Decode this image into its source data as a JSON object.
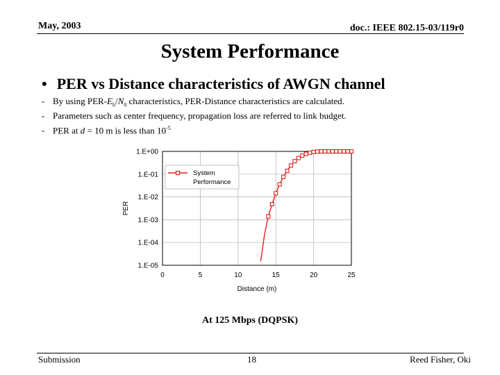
{
  "header": {
    "date": "May, 2003",
    "doc": "doc.: IEEE 802.15-03/119r0"
  },
  "title": "System Performance",
  "bullet": {
    "symbol": "•",
    "text": "PER vs Distance characteristics of AWGN channel"
  },
  "lines": [
    {
      "dash": "-",
      "pre": "By using PER-",
      "e": "E",
      "esub": "b",
      "slash": "/",
      "n": "N",
      "nsub": "0",
      "post": " characteristics, PER-Distance characteristics are calculated."
    },
    {
      "dash": "-",
      "text": "Parameters such as center frequency, propagation loss are referred to link budget."
    },
    {
      "dash": "-",
      "pre": "PER at ",
      "d": "d",
      "post": " = 10 m is less than 10",
      "sup": "-5"
    }
  ],
  "caption": "At 125 Mbps (DQPSK)",
  "footer": {
    "left": "Submission",
    "page": "18",
    "right": "Reed Fisher, Oki"
  },
  "chart_data": {
    "type": "line",
    "xlabel": "Distance (m)",
    "ylabel": "PER",
    "xlim": [
      0,
      25
    ],
    "ylim": [
      1e-05,
      1
    ],
    "yscale": "log",
    "grid": true,
    "legend_placement": "top-left",
    "color": "#e02020",
    "x_ticks": [
      "0",
      "5",
      "10",
      "15",
      "20",
      "25"
    ],
    "y_ticks": [
      "1.E+00",
      "1.E-01",
      "1.E-02",
      "1.E-03",
      "1.E-04",
      "1.E-05"
    ],
    "series": [
      {
        "name": "System Performance",
        "x": [
          13,
          13.5,
          14,
          14.5,
          15,
          15.5,
          16,
          16.5,
          17,
          17.5,
          18,
          18.5,
          19,
          19.5,
          20,
          20.5,
          21,
          21.5,
          22,
          22.5,
          23,
          23.5,
          24,
          24.5,
          25
        ],
        "y": [
          1.5e-05,
          0.00022,
          0.0014,
          0.0048,
          0.0145,
          0.036,
          0.076,
          0.14,
          0.24,
          0.37,
          0.51,
          0.65,
          0.78,
          0.87,
          0.94,
          0.98,
          1,
          1,
          1,
          1,
          1,
          1,
          1,
          1,
          1
        ],
        "markers_from": 14
      }
    ]
  }
}
